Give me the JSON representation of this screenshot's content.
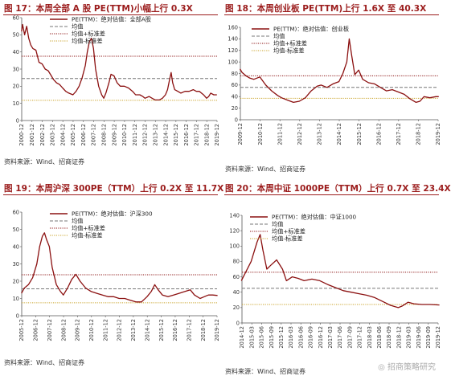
{
  "chart_data": [
    {
      "type": "line",
      "title": "图 17：本周全部 A 股 PE(TTM)小幅上行 0.3X",
      "source": "资料来源：Wind、招商证券",
      "legend": [
        "PE(TTM)：绝对估值：全部A股",
        "均值",
        "均值+标准差",
        "均值-标准差"
      ],
      "ylim": [
        0,
        60
      ],
      "yticks": [
        0,
        10,
        20,
        30,
        40,
        50,
        60
      ],
      "xlabels": [
        "2000-12",
        "2001-12",
        "2002-12",
        "2003-12",
        "2004-12",
        "2005-12",
        "2006-12",
        "2007-12",
        "2008-12",
        "2009-12",
        "2010-12",
        "2011-12",
        "2012-12",
        "2013-12",
        "2014-12",
        "2015-12",
        "2016-12",
        "2017-12",
        "2018-12",
        "2019-12"
      ],
      "x": [
        2000.9,
        2001.0,
        2001.2,
        2001.4,
        2001.6,
        2001.8,
        2002.0,
        2002.3,
        2002.6,
        2002.9,
        2003.2,
        2003.5,
        2003.8,
        2004.0,
        2004.3,
        2004.6,
        2004.9,
        2005.2,
        2005.5,
        2005.9,
        2006.2,
        2006.5,
        2006.8,
        2007.1,
        2007.3,
        2007.5,
        2007.7,
        2007.9,
        2008.1,
        2008.4,
        2008.7,
        2008.9,
        2009.1,
        2009.4,
        2009.6,
        2009.9,
        2010.2,
        2010.5,
        2010.9,
        2011.3,
        2011.7,
        2012.0,
        2012.4,
        2012.7,
        2012.9,
        2013.3,
        2013.6,
        2013.9,
        2014.3,
        2014.6,
        2014.9,
        2015.1,
        2015.3,
        2015.45,
        2015.6,
        2015.8,
        2016.1,
        2016.4,
        2016.8,
        2017.2,
        2017.6,
        2017.9,
        2018.2,
        2018.6,
        2018.9,
        2019.1,
        2019.3,
        2019.6,
        2019.9
      ],
      "values": [
        52,
        56,
        50,
        55,
        48,
        44,
        42,
        41,
        34,
        33,
        30,
        29,
        26,
        24,
        22,
        21,
        19,
        17,
        16,
        15,
        17,
        20,
        25,
        32,
        40,
        46,
        48,
        42,
        30,
        20,
        15,
        13,
        16,
        22,
        27,
        26,
        22,
        20,
        20,
        19,
        17,
        15,
        15,
        14,
        13,
        14,
        13,
        12,
        12,
        13,
        15,
        18,
        24,
        28,
        22,
        18,
        17,
        16,
        17,
        17,
        18,
        17,
        17,
        15,
        13,
        14,
        16,
        15,
        15
      ],
      "series_stats": {
        "mean": 24.5,
        "mean_plus_std": 37.5,
        "mean_minus_std": 11.8
      }
    },
    {
      "type": "line",
      "title": "图 18：本周创业板 PE(TTM)上行 1.6X 至 40.3X",
      "source": "资料来源：Wind、招商证券",
      "legend": [
        "PE(TTM)：绝对估值：创业板",
        "均值",
        "均值+标准差",
        "均值-标准差"
      ],
      "ylim": [
        0,
        160
      ],
      "yticks": [
        0,
        20,
        40,
        60,
        80,
        100,
        120,
        140,
        160
      ],
      "xlabels": [
        "2009-12",
        "2010-12",
        "2011-12",
        "2012-12",
        "2013-12",
        "2014-12",
        "2015-12",
        "2016-12",
        "2017-12",
        "2018-12",
        "2019-12"
      ],
      "x": [
        2009.9,
        2010.0,
        2010.2,
        2010.4,
        2010.6,
        2010.9,
        2011.2,
        2011.5,
        2011.8,
        2012.0,
        2012.3,
        2012.6,
        2012.9,
        2013.2,
        2013.5,
        2013.8,
        2014.0,
        2014.3,
        2014.6,
        2014.9,
        2015.1,
        2015.3,
        2015.42,
        2015.55,
        2015.7,
        2015.9,
        2016.1,
        2016.4,
        2016.7,
        2017.0,
        2017.3,
        2017.6,
        2017.9,
        2018.2,
        2018.5,
        2018.8,
        2019.0,
        2019.2,
        2019.5,
        2019.8,
        2019.95
      ],
      "values": [
        88,
        82,
        76,
        72,
        70,
        74,
        60,
        50,
        42,
        38,
        34,
        30,
        32,
        38,
        50,
        58,
        60,
        56,
        62,
        66,
        80,
        100,
        140,
        110,
        78,
        86,
        70,
        64,
        62,
        56,
        50,
        52,
        48,
        44,
        36,
        30,
        32,
        40,
        38,
        40,
        40
      ],
      "series_stats": {
        "mean": 56,
        "mean_plus_std": 76,
        "mean_minus_std": 37
      }
    },
    {
      "type": "line",
      "title": "图 19：本周沪深 300PE（TTM）上行 0.2X 至 11.7X",
      "source": "资料来源：Wind、招商证券",
      "legend": [
        "PE(TTM)：绝对估值：沪深300",
        "均值",
        "均值+标准差",
        "均值-标准差"
      ],
      "ylim": [
        0,
        60
      ],
      "yticks": [
        0,
        10,
        20,
        30,
        40,
        50,
        60
      ],
      "xlabels": [
        "2005-12",
        "2006-12",
        "2007-12",
        "2008-12",
        "2009-12",
        "2010-12",
        "2011-12",
        "2012-12",
        "2013-12",
        "2014-12",
        "2015-12",
        "2016-12",
        "2017-12",
        "2018-12",
        "2019-12"
      ],
      "x": [
        2005.9,
        2006.1,
        2006.4,
        2006.7,
        2007.0,
        2007.2,
        2007.4,
        2007.55,
        2007.7,
        2007.9,
        2008.1,
        2008.4,
        2008.7,
        2008.9,
        2009.2,
        2009.5,
        2009.8,
        2010.1,
        2010.5,
        2010.9,
        2011.3,
        2011.7,
        2012.1,
        2012.5,
        2012.9,
        2013.3,
        2013.7,
        2014.1,
        2014.5,
        2014.9,
        2015.2,
        2015.45,
        2015.7,
        2016.0,
        2016.4,
        2016.8,
        2017.2,
        2017.6,
        2018.0,
        2018.3,
        2018.7,
        2019.0,
        2019.3,
        2019.6,
        2019.95
      ],
      "values": [
        13,
        16,
        18,
        22,
        30,
        40,
        46,
        48,
        44,
        40,
        28,
        18,
        14,
        12,
        16,
        21,
        24,
        20,
        16,
        14,
        13,
        12,
        11,
        11,
        10,
        10,
        9,
        8,
        8,
        11,
        14,
        18,
        15,
        12,
        11,
        12,
        13,
        14,
        15,
        12,
        10,
        11,
        12,
        12,
        11.7
      ],
      "series_stats": {
        "mean": 15.6,
        "mean_plus_std": 23.7,
        "mean_minus_std": 7.5
      }
    },
    {
      "type": "line",
      "title": "图 20：本周中证 1000PE（TTM）上行 0.7X 至 23.4X",
      "source": "资料来源：Wind、招商证券",
      "legend": [
        "PE(TTM)：绝对估值：中证1000",
        "均值",
        "均值+标准差",
        "均值-标准差"
      ],
      "ylim": [
        0,
        140
      ],
      "yticks": [
        0,
        20,
        40,
        60,
        80,
        100,
        120,
        140
      ],
      "xlabels": [
        "2014-12",
        "2015-03",
        "2015-06",
        "2015-09",
        "2015-12",
        "2016-03",
        "2016-06",
        "2016-09",
        "2016-12",
        "2017-03",
        "2017-06",
        "2017-09",
        "2017-12",
        "2018-03",
        "2018-06",
        "2018-09",
        "2018-12",
        "2019-03",
        "2019-06",
        "2019-09",
        "2019-12"
      ],
      "x": [
        2014.9,
        2015.0,
        2015.15,
        2015.3,
        2015.38,
        2015.45,
        2015.55,
        2015.65,
        2015.8,
        2015.95,
        2016.05,
        2016.2,
        2016.35,
        2016.5,
        2016.7,
        2016.9,
        2017.1,
        2017.3,
        2017.5,
        2017.7,
        2017.9,
        2018.1,
        2018.3,
        2018.5,
        2018.7,
        2018.9,
        2019.0,
        2019.15,
        2019.3,
        2019.5,
        2019.7,
        2019.95
      ],
      "values": [
        55,
        65,
        80,
        105,
        115,
        95,
        70,
        75,
        82,
        70,
        55,
        60,
        58,
        55,
        57,
        55,
        50,
        46,
        42,
        40,
        38,
        36,
        33,
        28,
        23,
        20,
        22,
        27,
        25,
        24,
        24,
        23.4
      ],
      "series_stats": {
        "mean": 45,
        "mean_plus_std": 66,
        "mean_minus_std": 24
      }
    }
  ],
  "watermark": "招商策略研究"
}
